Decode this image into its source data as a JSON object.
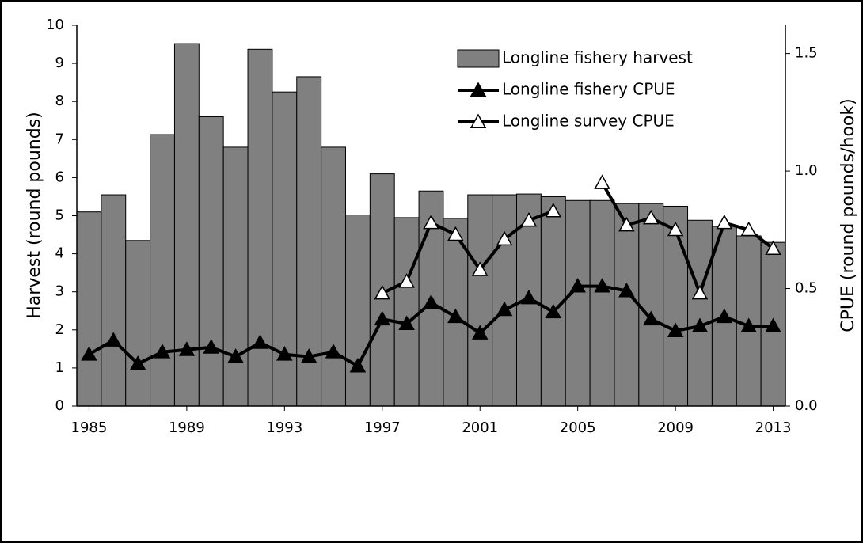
{
  "chart_data": {
    "type": "bar-line",
    "x": [
      1985,
      1986,
      1987,
      1988,
      1989,
      1990,
      1991,
      1992,
      1993,
      1994,
      1995,
      1996,
      1997,
      1998,
      1999,
      2000,
      2001,
      2002,
      2003,
      2004,
      2005,
      2006,
      2007,
      2008,
      2009,
      2010,
      2011,
      2012,
      2013
    ],
    "xlim": [
      1984.5,
      2013.5
    ],
    "xticks": [
      1985,
      1989,
      1993,
      1997,
      2001,
      2005,
      2009,
      2013
    ],
    "ylim": [
      0,
      10
    ],
    "yticks": [
      0,
      1,
      2,
      3,
      4,
      5,
      6,
      7,
      8,
      9,
      10
    ],
    "y2lim": [
      0,
      1.62
    ],
    "y2ticks": [
      {
        "value": 0,
        "label": "0.0"
      },
      0.5,
      {
        "value": 1,
        "label": "1.0"
      },
      1.5
    ],
    "y_label": "Harvest (round pounds)",
    "y2_label": "CPUE (round pounds/hook)",
    "legend": "top-right",
    "series": [
      {
        "name": "Longline fishery harvest",
        "kind": "bar",
        "color": "#808080",
        "values": [
          5.1,
          5.55,
          4.35,
          7.13,
          9.52,
          7.6,
          6.8,
          9.37,
          8.25,
          8.65,
          6.8,
          5.02,
          6.1,
          4.95,
          5.65,
          4.93,
          5.55,
          5.55,
          5.57,
          5.5,
          5.4,
          5.4,
          5.32,
          5.32,
          5.25,
          4.88,
          4.72,
          4.47,
          4.3
        ]
      },
      {
        "name": "Longline fishery CPUE",
        "kind": "line",
        "axis": "y2",
        "color": "#000000",
        "marker_fill": "#000000",
        "values": [
          0.22,
          0.28,
          0.18,
          0.23,
          0.24,
          0.25,
          0.21,
          0.27,
          0.22,
          0.21,
          0.23,
          0.17,
          0.37,
          0.35,
          0.44,
          0.38,
          0.31,
          0.41,
          0.46,
          0.4,
          0.51,
          0.51,
          0.49,
          0.37,
          0.32,
          0.34,
          0.38,
          0.34,
          0.34
        ]
      },
      {
        "name": "Longline survey CPUE",
        "kind": "line",
        "axis": "y2",
        "color": "#000000",
        "marker_fill": "#ffffff",
        "values": [
          null,
          null,
          null,
          null,
          null,
          null,
          null,
          null,
          null,
          null,
          null,
          null,
          0.48,
          0.53,
          0.78,
          0.73,
          0.58,
          0.71,
          0.79,
          0.83,
          null,
          0.95,
          0.77,
          0.8,
          0.75,
          0.48,
          0.78,
          0.75,
          0.67
        ]
      }
    ]
  }
}
